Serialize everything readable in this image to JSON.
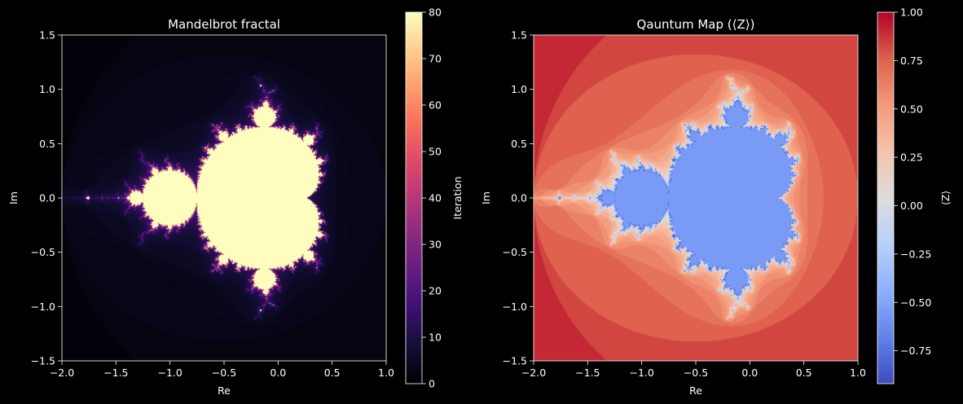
{
  "chart_data": [
    {
      "type": "heatmap",
      "title": "Mandelbrot fractal",
      "xlabel": "Re",
      "ylabel": "Im",
      "xlim": [
        -2.0,
        1.0
      ],
      "ylim": [
        -1.5,
        1.5
      ],
      "x_ticks": [
        -2.0,
        -1.5,
        -1.0,
        -0.5,
        0.0,
        0.5,
        1.0
      ],
      "y_ticks": [
        -1.5,
        -1.0,
        -0.5,
        0.0,
        0.5,
        1.0,
        1.5
      ],
      "x_tick_labels": [
        "−2.0",
        "−1.5",
        "−1.0",
        "−0.5",
        "0.0",
        "0.5",
        "1.0"
      ],
      "y_tick_labels": [
        "−1.5",
        "−1.0",
        "−0.5",
        "0.0",
        "0.5",
        "1.0",
        "1.5"
      ],
      "value_name": "iteration count",
      "max_iter": 80,
      "colormap": "magma",
      "colorbar": {
        "label": "Iteration",
        "range": [
          0,
          80
        ],
        "ticks": [
          0,
          10,
          20,
          30,
          40,
          50,
          60,
          70,
          80
        ],
        "tick_labels": [
          "0",
          "10",
          "20",
          "30",
          "40",
          "50",
          "60",
          "70",
          "80"
        ]
      }
    },
    {
      "type": "heatmap",
      "title": "Qauntum Map (⟨Z⟩)",
      "xlabel": "Re",
      "ylabel": "Im",
      "xlim": [
        -2.0,
        1.0
      ],
      "ylim": [
        -1.5,
        1.5
      ],
      "x_ticks": [
        -2.0,
        -1.5,
        -1.0,
        -0.5,
        0.0,
        0.5,
        1.0
      ],
      "y_ticks": [
        -1.5,
        -1.0,
        -0.5,
        0.0,
        0.5,
        1.0,
        1.5
      ],
      "x_tick_labels": [
        "−2.0",
        "−1.5",
        "−1.0",
        "−0.5",
        "0.0",
        "0.5",
        "1.0"
      ],
      "y_tick_labels": [
        "−1.5",
        "−1.0",
        "−0.5",
        "0.0",
        "0.5",
        "1.0",
        "1.5"
      ],
      "value_name": "⟨Z⟩",
      "colormap": "coolwarm",
      "colorbar": {
        "label": "⟨Z⟩",
        "range": [
          -0.92,
          1.0
        ],
        "ticks": [
          -0.75,
          -0.5,
          -0.25,
          0.0,
          0.25,
          0.5,
          0.75,
          1.0
        ],
        "tick_labels": [
          "−0.75",
          "−0.50",
          "−0.25",
          "0.00",
          "0.25",
          "0.50",
          "0.75",
          "1.00"
        ]
      }
    }
  ],
  "colors": {
    "background": "#000000",
    "axes_text": "#ffffff",
    "spine": "#ffffff"
  }
}
